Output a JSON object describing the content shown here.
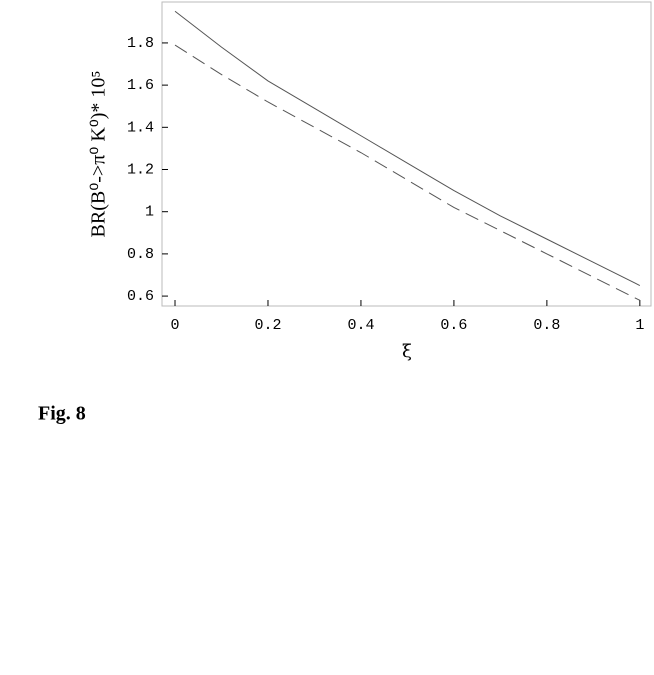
{
  "chart_data": {
    "type": "line",
    "x_label": "ξ",
    "y_label": "BR(B⁰->π⁰ K⁰)* 10⁵",
    "x": [
      0,
      0.1,
      0.2,
      0.3,
      0.4,
      0.5,
      0.6,
      0.7,
      0.8,
      0.9,
      1
    ],
    "series": [
      {
        "color": "#555555",
        "style": "solid",
        "values": [
          1.95,
          1.78,
          1.62,
          1.49,
          1.36,
          1.23,
          1.1,
          0.98,
          0.87,
          0.76,
          0.65
        ]
      },
      {
        "color": "#555555",
        "style": "dashed",
        "values": [
          1.79,
          1.65,
          1.52,
          1.4,
          1.28,
          1.15,
          1.02,
          0.91,
          0.8,
          0.69,
          0.58
        ]
      }
    ],
    "xlim": [
      -0.028,
      1.024
    ],
    "ylim": [
      0.553,
      1.994
    ],
    "xticks": [
      0,
      0.2,
      0.4,
      0.6,
      0.8,
      1
    ],
    "yticks": [
      0.6,
      0.8,
      1,
      1.2,
      1.4,
      1.6,
      1.8
    ]
  },
  "caption": "Fig. 8"
}
